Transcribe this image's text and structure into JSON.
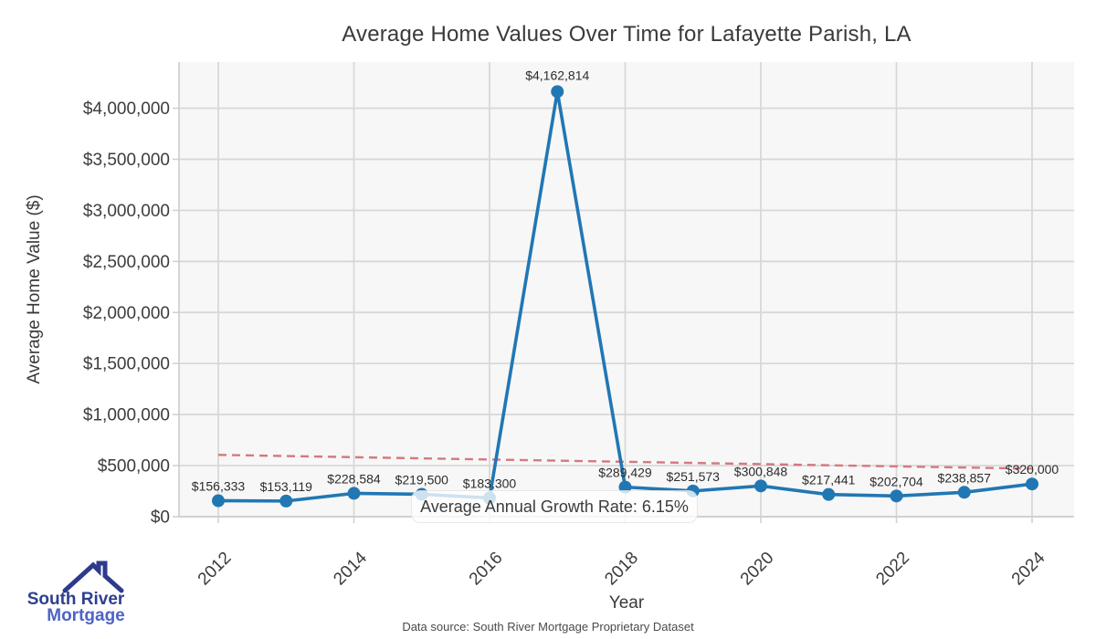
{
  "chart_data": {
    "type": "line",
    "title": "Average Home Values Over Time for Lafayette Parish, LA",
    "xlabel": "Year",
    "ylabel": "Average Home Value ($)",
    "x": [
      2012,
      2013,
      2014,
      2015,
      2016,
      2017,
      2018,
      2019,
      2020,
      2021,
      2022,
      2023,
      2024
    ],
    "values": [
      156333,
      153119,
      228584,
      219500,
      183300,
      4162814,
      289429,
      251573,
      300848,
      217441,
      202704,
      238857,
      320000
    ],
    "point_labels": [
      "$156,333",
      "$153,119",
      "$228,584",
      "$219,500",
      "$183,300",
      "$4,162,814",
      "$289,429",
      "$251,573",
      "$300,848",
      "$217,441",
      "$202,704",
      "$238,857",
      "$320,000"
    ],
    "xticks": [
      2012,
      2014,
      2016,
      2018,
      2020,
      2022,
      2024
    ],
    "yticks": {
      "values": [
        0,
        500000,
        1000000,
        1500000,
        2000000,
        2500000,
        3000000,
        3500000,
        4000000
      ],
      "labels": [
        "$0",
        "$500,000",
        "$1,000,000",
        "$1,500,000",
        "$2,000,000",
        "$2,500,000",
        "$3,000,000",
        "$3,500,000",
        "$4,000,000"
      ]
    },
    "ylim": [
      0,
      4452000
    ],
    "grid": true,
    "legend": "none",
    "annotation": "Average Annual Growth Rate: 6.15%",
    "trendline": {
      "style": "dashed",
      "x": [
        2012,
        2024
      ],
      "y": [
        605000,
        470000
      ]
    },
    "colors": {
      "line": "#2177b4",
      "marker": "#2177b4",
      "trend": "#d4797e",
      "grid": "#d6d6d6",
      "spine": "#cfcfcf",
      "plot_bg": "#f7f7f7",
      "tick_text": "#3c3c3c",
      "label_text": "#2c2c2c"
    }
  },
  "branding": {
    "logo_line1": "South River",
    "logo_line2": "Mortgage",
    "logo_navy": "#2e3a8c"
  },
  "footer": {
    "source": "Data source: South River Mortgage Proprietary Dataset"
  }
}
